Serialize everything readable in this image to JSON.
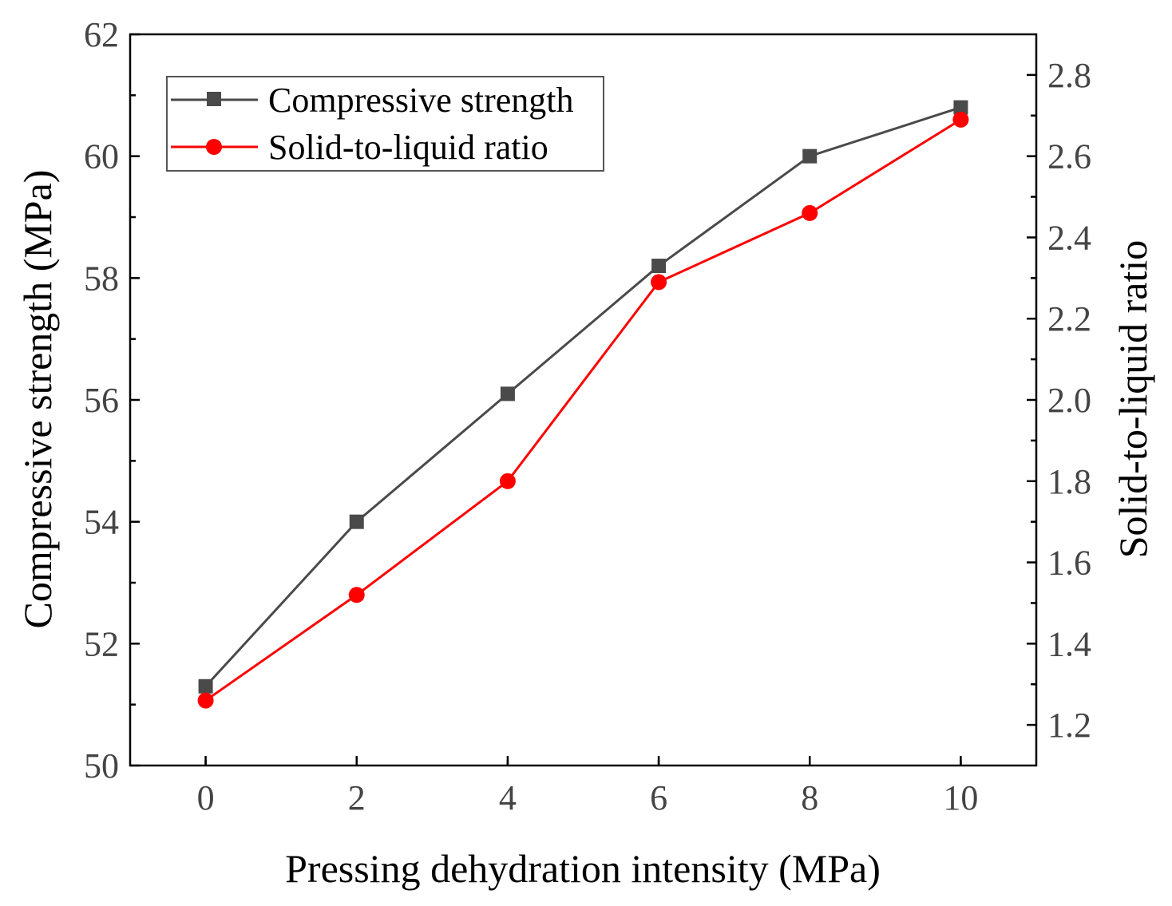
{
  "chart_data": {
    "type": "line",
    "title": "",
    "xlabel": "Pressing dehydration intensity (MPa)",
    "ylabel": "Compressive strength (MPa)",
    "y2label": "Solid-to-liquid ratio",
    "xlim": [
      -1,
      11
    ],
    "ylim": [
      50,
      62
    ],
    "y2lim": [
      1.1,
      2.9
    ],
    "x": [
      0,
      2,
      4,
      6,
      8,
      10
    ],
    "xticks": [
      "0",
      "2",
      "4",
      "6",
      "8",
      "10"
    ],
    "yticks": [
      "50",
      "52",
      "54",
      "56",
      "58",
      "60",
      "62"
    ],
    "y2ticks": [
      "1.2",
      "1.4",
      "1.6",
      "1.8",
      "2.0",
      "2.2",
      "2.4",
      "2.6",
      "2.8"
    ],
    "grid": false,
    "legend_position": "top-left",
    "series": [
      {
        "name": "Compressive strength",
        "axis": "left",
        "marker": "square",
        "color": "#4a4a4a",
        "values": [
          51.3,
          54.0,
          56.1,
          58.2,
          60.0,
          60.8
        ]
      },
      {
        "name": "Solid-to-liquid ratio",
        "axis": "right",
        "marker": "circle",
        "color": "#ff0000",
        "values": [
          1.26,
          1.52,
          1.8,
          2.29,
          2.46,
          2.69
        ]
      }
    ]
  }
}
